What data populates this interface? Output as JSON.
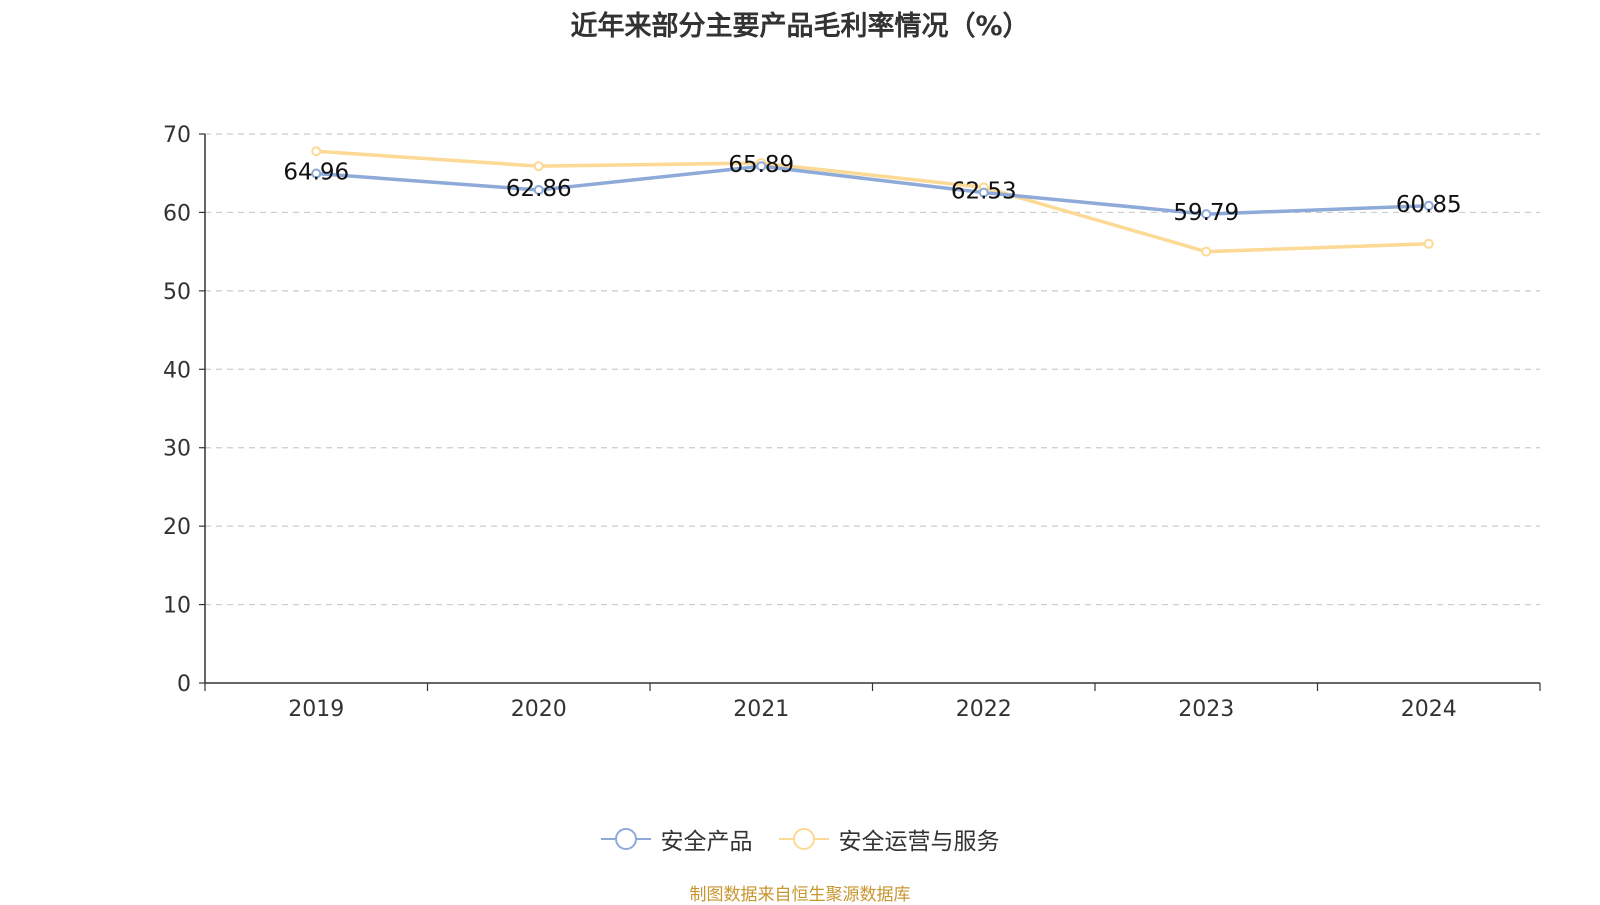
{
  "chart_data": {
    "type": "line",
    "title": "近年来部分主要产品毛利率情况（%）",
    "categories": [
      "2019",
      "2020",
      "2021",
      "2022",
      "2023",
      "2024"
    ],
    "ylim": [
      0,
      70
    ],
    "yticks": [
      0,
      10,
      20,
      30,
      40,
      50,
      60,
      70
    ],
    "grid": true,
    "legend_position": "bottom",
    "series": [
      {
        "name": "安全产品",
        "color": "#8eaad8",
        "values": [
          64.96,
          62.86,
          65.89,
          62.53,
          59.79,
          60.85
        ],
        "labels": [
          "64.96",
          "62.86",
          "65.89",
          "62.53",
          "59.79",
          "60.85"
        ]
      },
      {
        "name": "安全运营与服务",
        "color": "#fcd995",
        "values": [
          67.8,
          65.9,
          66.3,
          63.2,
          55.0,
          56.0
        ]
      }
    ]
  },
  "footer": {
    "source": "制图数据来自恒生聚源数据库"
  }
}
